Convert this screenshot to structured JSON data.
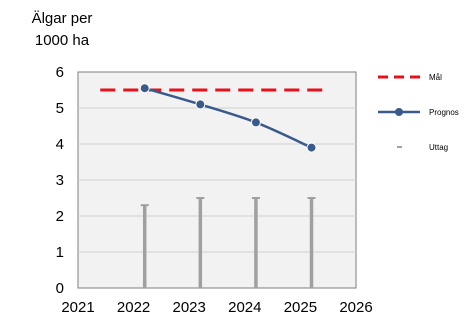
{
  "chart_data": {
    "type": "line",
    "title": "",
    "ylabel": "Älgar per 1000 ha",
    "xlabel": "",
    "xlim": [
      2021,
      2026
    ],
    "ylim": [
      0,
      6
    ],
    "x_ticks": [
      "2021",
      "2022",
      "2023",
      "2024",
      "2025",
      "2026"
    ],
    "y_ticks": [
      "0",
      "1",
      "2",
      "3",
      "4",
      "5",
      "6"
    ],
    "grid": true,
    "legend_position": "right",
    "series": [
      {
        "name": "Mål",
        "type": "line",
        "style": "dashed",
        "color": "#e8101b",
        "x": [
          2021.4,
          2025.5
        ],
        "values": [
          5.5,
          5.5
        ]
      },
      {
        "name": "Prognos",
        "type": "line",
        "style": "solid-markers",
        "color": "#3a5a8c",
        "x": [
          2022.2,
          2023.2,
          2024.2,
          2025.2
        ],
        "values": [
          5.55,
          5.1,
          4.6,
          3.9
        ]
      },
      {
        "name": "Uttag",
        "type": "bar",
        "color": "#a0a0a0",
        "x": [
          2022.2,
          2023.2,
          2024.2,
          2025.2
        ],
        "values": [
          2.3,
          2.5,
          2.5,
          2.5
        ]
      }
    ]
  }
}
